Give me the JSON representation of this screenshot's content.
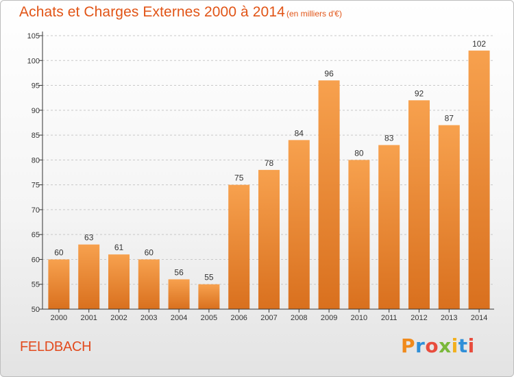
{
  "header": {
    "title": "Achats et Charges Externes 2000 à 2014",
    "subtitle": "(en milliers d'€)"
  },
  "footer": {
    "town": "FELDBACH",
    "brand": "Proxiti"
  },
  "colors": {
    "title": "#e15416",
    "bar_top": "#f7a14e",
    "bar_bottom": "#d9701e",
    "axis": "#333333",
    "grid": "#c8c8c8"
  },
  "chart_data": {
    "type": "bar",
    "title": "Achats et Charges Externes 2000 à 2014",
    "subtitle": "(en milliers d'€)",
    "xlabel": "",
    "ylabel": "",
    "ylim": [
      50,
      105
    ],
    "yticks": [
      50,
      55,
      60,
      65,
      70,
      75,
      80,
      85,
      90,
      95,
      100,
      105
    ],
    "grid": "horizontal-dashed",
    "categories": [
      "2000",
      "2001",
      "2002",
      "2003",
      "2004",
      "2005",
      "2006",
      "2007",
      "2008",
      "2009",
      "2010",
      "2011",
      "2012",
      "2013",
      "2014"
    ],
    "values": [
      60,
      63,
      61,
      60,
      56,
      55,
      75,
      78,
      84,
      96,
      80,
      83,
      92,
      87,
      102
    ]
  }
}
